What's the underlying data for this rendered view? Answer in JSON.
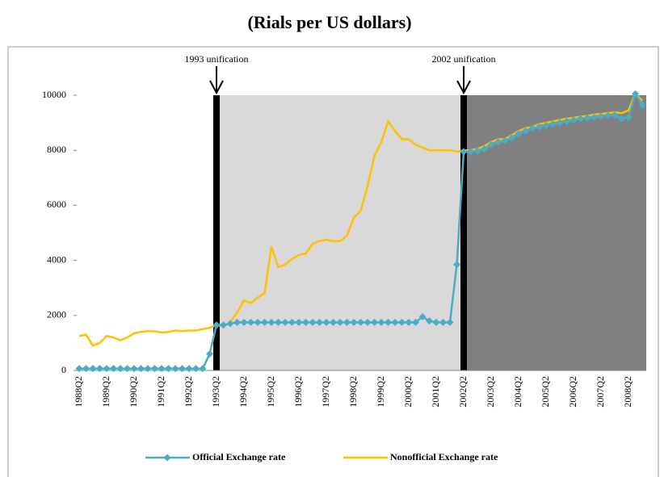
{
  "chart_data": {
    "type": "line",
    "title": "(Rials per US dollars)",
    "categories": [
      "1988Q2",
      null,
      null,
      null,
      "1989Q2",
      null,
      null,
      null,
      "1990Q2",
      null,
      null,
      null,
      "1991Q2",
      null,
      null,
      null,
      "1992Q2",
      null,
      null,
      null,
      "1993Q2",
      null,
      null,
      null,
      "1994Q2",
      null,
      null,
      null,
      "1995Q2",
      null,
      null,
      null,
      "1996Q2",
      null,
      null,
      null,
      "1997Q2",
      null,
      null,
      null,
      "1998Q2",
      null,
      null,
      null,
      "1999Q2",
      null,
      null,
      null,
      "2000Q2",
      null,
      null,
      null,
      "2001Q2",
      null,
      null,
      null,
      "2002Q2",
      null,
      null,
      null,
      "2003Q2",
      null,
      null,
      null,
      "2004Q2",
      null,
      null,
      null,
      "2005Q2",
      null,
      null,
      null,
      "2006Q2",
      null,
      null,
      null,
      "2007Q2",
      null,
      null,
      null,
      "2008Q2",
      null,
      null
    ],
    "series": [
      {
        "name": "Official Exchange rate",
        "color": "#4bacc6",
        "marker": "diamond",
        "values": [
          70,
          70,
          70,
          70,
          70,
          70,
          70,
          70,
          70,
          70,
          70,
          70,
          70,
          70,
          70,
          70,
          70,
          70,
          70,
          600,
          1650,
          1650,
          1700,
          1750,
          1750,
          1750,
          1750,
          1750,
          1750,
          1750,
          1750,
          1750,
          1750,
          1750,
          1750,
          1750,
          1750,
          1750,
          1750,
          1750,
          1750,
          1750,
          1750,
          1750,
          1750,
          1750,
          1750,
          1750,
          1750,
          1750,
          1950,
          1800,
          1750,
          1750,
          1750,
          3850,
          7950,
          7950,
          7980,
          8050,
          8200,
          8300,
          8350,
          8450,
          8600,
          8700,
          8800,
          8850,
          8900,
          8950,
          9000,
          9050,
          9100,
          9150,
          9180,
          9200,
          9230,
          9260,
          9280,
          9150,
          9200,
          10050,
          9650
        ]
      },
      {
        "name": "Nonofficial Exchange rate",
        "color": "#ffc000",
        "values": [
          1250,
          1300,
          900,
          1000,
          1250,
          1200,
          1100,
          1200,
          1350,
          1400,
          1430,
          1420,
          1380,
          1400,
          1450,
          1430,
          1450,
          1450,
          1500,
          1550,
          1650,
          1600,
          1750,
          2100,
          2550,
          2450,
          2650,
          2800,
          4500,
          3750,
          3850,
          4050,
          4200,
          4250,
          4600,
          4700,
          4750,
          4700,
          4700,
          4900,
          5550,
          5800,
          6700,
          7800,
          8300,
          9050,
          8700,
          8400,
          8400,
          8200,
          8100,
          8000,
          8000,
          8000,
          8000,
          7950,
          8000,
          8000,
          8050,
          8150,
          8300,
          8400,
          8400,
          8550,
          8700,
          8800,
          8850,
          8950,
          9000,
          9050,
          9100,
          9150,
          9180,
          9220,
          9250,
          9300,
          9320,
          9350,
          9380,
          9350,
          9450,
          10050,
          9800
        ]
      }
    ],
    "ylim": [
      0,
      10000
    ],
    "yticks": [
      0,
      2000,
      4000,
      6000,
      8000,
      10000
    ],
    "regions": [
      {
        "start": "1993Q2",
        "end": "2002Q2",
        "color": "#d9d9d9"
      },
      {
        "start": "2002Q2",
        "color": "#808080"
      }
    ],
    "annotations": [
      {
        "text": "1993 unification",
        "x": "1993Q2"
      },
      {
        "text": "2002 unification",
        "x": "2002Q2"
      }
    ],
    "legend": "bottom"
  }
}
